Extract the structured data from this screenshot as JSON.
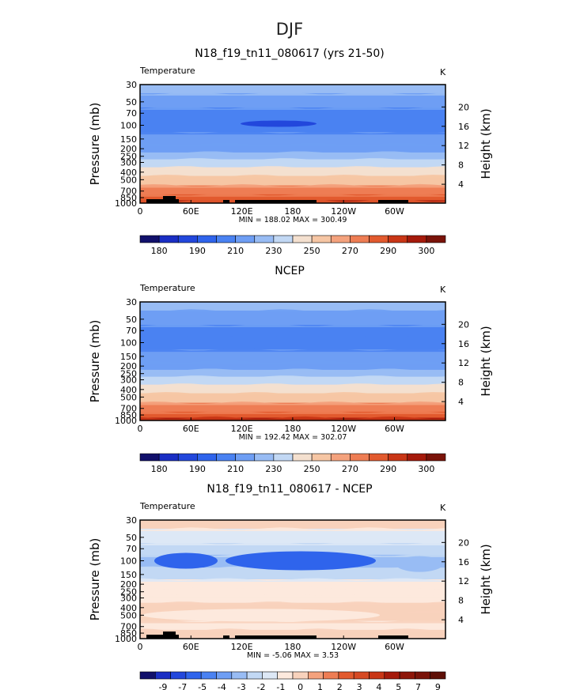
{
  "figure_title": "DJF",
  "chart_data": [
    {
      "type": "heatmap",
      "title": "N18_f19_tn11_080617 (yrs 21-50)",
      "variable_label": "Temperature",
      "units_label": "K",
      "ylabel": "Pressure (mb)",
      "ylabel_right": "Height (km)",
      "x_ticks": [
        "0",
        "60E",
        "120E",
        "180",
        "120W",
        "60W"
      ],
      "y_ticks": [
        "30",
        "50",
        "70",
        "100",
        "150",
        "200",
        "250",
        "300",
        "400",
        "500",
        "700",
        "850",
        "1000"
      ],
      "y_ticks_right": [
        "20",
        "16",
        "12",
        "8",
        "4"
      ],
      "stats_label": "MIN = 188.02   MAX = 300.49",
      "min": 188.02,
      "max": 300.49,
      "levels": [
        180,
        185,
        190,
        200,
        210,
        220,
        230,
        240,
        250,
        260,
        270,
        280,
        290,
        295,
        300
      ],
      "colorbar_labels": [
        "180",
        "190",
        "210",
        "230",
        "250",
        "270",
        "290",
        "300"
      ],
      "layers": [
        {
          "pressure": 30,
          "value": 226
        },
        {
          "pressure": 50,
          "value": 217
        },
        {
          "pressure": 70,
          "value": 207
        },
        {
          "pressure": 100,
          "value": 203
        },
        {
          "pressure": 150,
          "value": 211
        },
        {
          "pressure": 200,
          "value": 219
        },
        {
          "pressure": 250,
          "value": 226
        },
        {
          "pressure": 300,
          "value": 235
        },
        {
          "pressure": 400,
          "value": 246
        },
        {
          "pressure": 500,
          "value": 256
        },
        {
          "pressure": 700,
          "value": 271
        },
        {
          "pressure": 850,
          "value": 283
        },
        {
          "pressure": 1000,
          "value": 296
        }
      ]
    },
    {
      "type": "heatmap",
      "title": "NCEP",
      "variable_label": "Temperature",
      "units_label": "K",
      "ylabel": "Pressure (mb)",
      "ylabel_right": "Height (km)",
      "x_ticks": [
        "0",
        "60E",
        "120E",
        "180",
        "120W",
        "60W"
      ],
      "y_ticks": [
        "30",
        "50",
        "70",
        "100",
        "150",
        "200",
        "250",
        "300",
        "400",
        "500",
        "700",
        "850",
        "1000"
      ],
      "y_ticks_right": [
        "20",
        "16",
        "12",
        "8",
        "4"
      ],
      "stats_label": "MIN = 192.42   MAX = 302.07",
      "min": 192.42,
      "max": 302.07,
      "levels": [
        180,
        185,
        190,
        200,
        210,
        220,
        230,
        240,
        250,
        260,
        270,
        280,
        290,
        295,
        300
      ],
      "colorbar_labels": [
        "180",
        "190",
        "210",
        "230",
        "250",
        "270",
        "290",
        "300"
      ],
      "layers": [
        {
          "pressure": 30,
          "value": 224
        },
        {
          "pressure": 50,
          "value": 215
        },
        {
          "pressure": 70,
          "value": 207
        },
        {
          "pressure": 100,
          "value": 204
        },
        {
          "pressure": 150,
          "value": 211
        },
        {
          "pressure": 200,
          "value": 219
        },
        {
          "pressure": 250,
          "value": 226
        },
        {
          "pressure": 300,
          "value": 236
        },
        {
          "pressure": 400,
          "value": 247
        },
        {
          "pressure": 500,
          "value": 258
        },
        {
          "pressure": 700,
          "value": 272
        },
        {
          "pressure": 850,
          "value": 285
        },
        {
          "pressure": 1000,
          "value": 298
        }
      ]
    },
    {
      "type": "heatmap",
      "title": "N18_f19_tn11_080617 - NCEP",
      "variable_label": "Temperature",
      "units_label": "K",
      "ylabel": "Pressure (mb)",
      "ylabel_right": "Height (km)",
      "x_ticks": [
        "0",
        "60E",
        "120E",
        "180",
        "120W",
        "60W"
      ],
      "y_ticks": [
        "30",
        "50",
        "70",
        "100",
        "150",
        "200",
        "250",
        "300",
        "400",
        "500",
        "700",
        "850",
        "1000"
      ],
      "y_ticks_right": [
        "20",
        "16",
        "12",
        "8",
        "4"
      ],
      "stats_label": "MIN =  -5.06   MAX =    3.53",
      "min": -5.06,
      "max": 3.53,
      "levels": [
        -9,
        -8,
        -7,
        -6,
        -5,
        -4,
        -3,
        -2,
        -1,
        0,
        1,
        2,
        3,
        4,
        5,
        6,
        7,
        8,
        9
      ],
      "colorbar_labels": [
        "-9",
        "-7",
        "-5",
        "-4",
        "-3",
        "-2",
        "-1",
        "0",
        "1",
        "2",
        "3",
        "4",
        "5",
        "7",
        "9"
      ],
      "layers": [
        {
          "pressure": 30,
          "value": 0.5
        },
        {
          "pressure": 50,
          "value": -1.5
        },
        {
          "pressure": 70,
          "value": -2.5
        },
        {
          "pressure": 100,
          "value": -3.5
        },
        {
          "pressure": 150,
          "value": -2.5
        },
        {
          "pressure": 200,
          "value": -0.5
        },
        {
          "pressure": 250,
          "value": -0.5
        },
        {
          "pressure": 300,
          "value": -0.5
        },
        {
          "pressure": 400,
          "value": 0.5
        },
        {
          "pressure": 500,
          "value": 0.5
        },
        {
          "pressure": 700,
          "value": -0.5
        },
        {
          "pressure": 850,
          "value": 0.5
        },
        {
          "pressure": 1000,
          "value": 0.5
        }
      ]
    }
  ]
}
